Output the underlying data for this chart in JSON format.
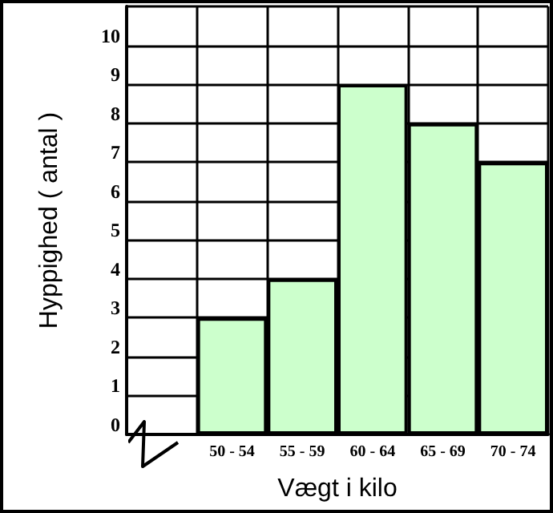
{
  "chart_data": {
    "type": "bar",
    "xlabel": "Vægt i kilo",
    "ylabel": "Hyppighed ( antal )",
    "categories": [
      null,
      "50 - 54",
      "55 - 59",
      "60 - 64",
      "65 - 69",
      "70 - 74"
    ],
    "values": [
      null,
      3,
      4,
      9,
      8,
      7
    ],
    "color": "#ccffcc",
    "ylim": [
      0,
      11
    ],
    "yticks": [
      0,
      1,
      2,
      3,
      4,
      5,
      6,
      7,
      8,
      9,
      10
    ],
    "grid": true
  }
}
